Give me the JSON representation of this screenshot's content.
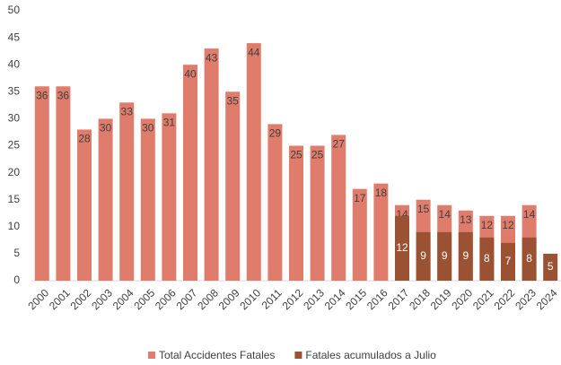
{
  "chart_data": {
    "type": "bar",
    "categories": [
      "2000",
      "2001",
      "2002",
      "2003",
      "2004",
      "2005",
      "2006",
      "2007",
      "2008",
      "2009",
      "2010",
      "2011",
      "2012",
      "2013",
      "2014",
      "2015",
      "2016",
      "2017",
      "2018",
      "2019",
      "2020",
      "2021",
      "2022",
      "2023",
      "2024"
    ],
    "series": [
      {
        "name": "Total Accidentes Fatales",
        "color": "#e07c6b",
        "values": [
          36,
          36,
          28,
          30,
          33,
          30,
          31,
          40,
          43,
          35,
          44,
          29,
          25,
          25,
          27,
          17,
          18,
          14,
          15,
          14,
          13,
          12,
          12,
          14,
          null
        ]
      },
      {
        "name": "Fatales acumulados a Julio",
        "color": "#9b5233",
        "values": [
          null,
          null,
          null,
          null,
          null,
          null,
          null,
          null,
          null,
          null,
          null,
          null,
          null,
          null,
          null,
          null,
          null,
          12,
          9,
          9,
          9,
          8,
          7,
          8,
          5
        ]
      }
    ],
    "ylim": [
      0,
      50
    ],
    "yticks": [
      0,
      5,
      10,
      15,
      20,
      25,
      30,
      35,
      40,
      45,
      50
    ],
    "grid": false,
    "legend": "bottom"
  }
}
